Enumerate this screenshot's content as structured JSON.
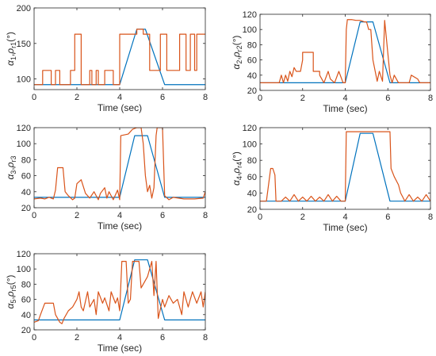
{
  "colors": {
    "reference": "#0072BD",
    "measured": "#D95319",
    "axes": "#262626",
    "background": "#ffffff"
  },
  "chart_data": [
    {
      "type": "line",
      "title": "",
      "xlabel": "Time (sec)",
      "ylabel_sym": "α",
      "ylabel_sym2": "ρ",
      "ylabel_sub1": "1",
      "ylabel_sub2": "r1",
      "ylabel_unit": "(°)",
      "xlim": [
        0,
        8
      ],
      "ylim": [
        85,
        200
      ],
      "xticks": [
        "0",
        "2",
        "4",
        "6",
        "8"
      ],
      "yticks": [
        "100",
        "150",
        "200"
      ],
      "series": [
        {
          "role": "reference",
          "x": [
            0,
            4,
            4.8,
            5.2,
            6.1,
            8
          ],
          "y": [
            92,
            92,
            170,
            170,
            92,
            92
          ]
        },
        {
          "role": "measured",
          "x": [
            0,
            0.4,
            0.4,
            0.8,
            0.8,
            1.0,
            1.0,
            1.2,
            1.2,
            1.7,
            1.7,
            1.9,
            1.9,
            2.2,
            2.2,
            2.6,
            2.6,
            2.7,
            2.7,
            2.9,
            2.9,
            3.0,
            3.0,
            3.3,
            3.3,
            3.7,
            3.7,
            4.0,
            4.0,
            4.8,
            4.8,
            5.1,
            5.1,
            5.4,
            5.4,
            5.9,
            5.9,
            6.2,
            6.2,
            6.8,
            6.8,
            7.1,
            7.1,
            7.3,
            7.3,
            7.5,
            7.5,
            7.6,
            7.6,
            7.8,
            7.8,
            8
          ],
          "y": [
            92,
            92,
            112,
            112,
            92,
            92,
            112,
            112,
            92,
            92,
            112,
            112,
            163,
            163,
            92,
            92,
            112,
            112,
            92,
            92,
            112,
            112,
            92,
            92,
            112,
            112,
            92,
            92,
            163,
            163,
            170,
            170,
            163,
            163,
            112,
            112,
            163,
            163,
            112,
            112,
            163,
            163,
            112,
            112,
            163,
            163,
            112,
            112,
            163,
            163,
            163,
            163
          ]
        }
      ]
    },
    {
      "type": "line",
      "title": "",
      "xlabel": "Time (sec)",
      "ylabel_sym": "α",
      "ylabel_sym2": "ρ",
      "ylabel_sub1": "2",
      "ylabel_sub2": "r2",
      "ylabel_unit": "(°)",
      "xlim": [
        0,
        8
      ],
      "ylim": [
        20,
        120
      ],
      "xticks": [
        "0",
        "2",
        "4",
        "6",
        "8"
      ],
      "yticks": [
        "20",
        "40",
        "60",
        "80",
        "100",
        "120"
      ],
      "series": [
        {
          "role": "reference",
          "x": [
            0,
            4,
            4.7,
            5.3,
            6.1,
            8
          ],
          "y": [
            30,
            30,
            110,
            110,
            30,
            30
          ]
        },
        {
          "role": "measured",
          "x": [
            0,
            0.9,
            1.0,
            1.1,
            1.2,
            1.3,
            1.4,
            1.5,
            1.6,
            1.7,
            1.9,
            2.0,
            2.0,
            2.5,
            2.5,
            2.8,
            2.8,
            3.0,
            3.2,
            3.3,
            3.5,
            3.7,
            3.9,
            4.0,
            4.05,
            4.1,
            4.3,
            4.5,
            4.7,
            4.9,
            5.0,
            5.1,
            5.2,
            5.3,
            5.5,
            5.6,
            5.75,
            5.85,
            5.85,
            6.1,
            6.2,
            6.3,
            6.5,
            6.6,
            7.0,
            7.1,
            7.4,
            7.5,
            7.6,
            8
          ],
          "y": [
            30,
            30,
            40,
            30,
            40,
            32,
            45,
            38,
            50,
            45,
            45,
            60,
            70,
            70,
            45,
            45,
            40,
            30,
            45,
            35,
            30,
            45,
            30,
            30,
            100,
            113,
            113,
            112,
            112,
            110,
            110,
            100,
            100,
            60,
            32,
            45,
            32,
            112,
            112,
            40,
            30,
            40,
            30,
            30,
            30,
            40,
            35,
            30,
            30,
            30
          ]
        }
      ]
    },
    {
      "type": "line",
      "title": "",
      "xlabel": "Time (sec)",
      "ylabel_sym": "α",
      "ylabel_sym2": "ρ",
      "ylabel_sub1": "3",
      "ylabel_sub2": "r3",
      "ylabel_unit": "",
      "xlim": [
        0,
        8
      ],
      "ylim": [
        20,
        120
      ],
      "xticks": [
        "0",
        "2",
        "4",
        "6",
        "8"
      ],
      "yticks": [
        "20",
        "40",
        "60",
        "80",
        "100",
        "120"
      ],
      "series": [
        {
          "role": "reference",
          "x": [
            0,
            4,
            4.7,
            5.3,
            6.1,
            8
          ],
          "y": [
            33,
            33,
            110,
            110,
            33,
            33
          ]
        },
        {
          "role": "measured",
          "x": [
            0,
            0.3,
            0.5,
            0.7,
            0.9,
            1.0,
            1.1,
            1.35,
            1.45,
            1.6,
            1.8,
            1.9,
            2.0,
            2.2,
            2.4,
            2.6,
            2.8,
            3.0,
            3.1,
            3.3,
            3.4,
            3.5,
            3.7,
            3.9,
            4.0,
            4.05,
            4.4,
            4.6,
            4.8,
            5.0,
            5.1,
            5.2,
            5.3,
            5.4,
            5.5,
            5.6,
            5.7,
            5.75,
            6.0,
            6.1,
            6.3,
            6.5,
            7.0,
            7.5,
            7.9,
            8
          ],
          "y": [
            31,
            32,
            31,
            33,
            31,
            42,
            70,
            70,
            40,
            35,
            30,
            32,
            50,
            55,
            38,
            32,
            40,
            30,
            38,
            45,
            32,
            40,
            30,
            42,
            30,
            110,
            112,
            118,
            120,
            120,
            100,
            60,
            40,
            48,
            32,
            45,
            110,
            120,
            120,
            35,
            30,
            33,
            31,
            31,
            32,
            40
          ]
        }
      ]
    },
    {
      "type": "line",
      "title": "",
      "xlabel": "Time (sec)",
      "ylabel_sym": "α",
      "ylabel_sym2": "ρ",
      "ylabel_sub1": "4",
      "ylabel_sub2": "r4",
      "ylabel_unit": "(°)",
      "xlim": [
        0,
        8
      ],
      "ylim": [
        20,
        120
      ],
      "xticks": [
        "0",
        "2",
        "4",
        "6",
        "8"
      ],
      "yticks": [
        "20",
        "40",
        "60",
        "80",
        "100",
        "120"
      ],
      "series": [
        {
          "role": "reference",
          "x": [
            0,
            4,
            4.7,
            5.3,
            6.1,
            8
          ],
          "y": [
            30,
            30,
            113,
            113,
            30,
            30
          ]
        },
        {
          "role": "measured",
          "x": [
            0,
            0.3,
            0.35,
            0.5,
            0.6,
            0.7,
            0.75,
            1.0,
            1.2,
            1.4,
            1.6,
            1.8,
            2.0,
            2.2,
            2.4,
            2.6,
            2.8,
            3.0,
            3.2,
            3.4,
            3.6,
            3.8,
            4.0,
            4.05,
            6.1,
            6.15,
            6.3,
            6.5,
            6.6,
            6.8,
            7.0,
            7.2,
            7.4,
            7.6,
            7.8,
            8
          ],
          "y": [
            30,
            30,
            40,
            70,
            70,
            62,
            30,
            30,
            35,
            30,
            38,
            30,
            35,
            30,
            36,
            30,
            35,
            30,
            38,
            30,
            36,
            30,
            30,
            115,
            115,
            70,
            60,
            50,
            40,
            30,
            38,
            30,
            35,
            30,
            38,
            30
          ]
        }
      ]
    },
    {
      "type": "line",
      "title": "",
      "xlabel": "Time (sec)",
      "ylabel_sym": "α",
      "ylabel_sym2": "ρ",
      "ylabel_sub1": "5",
      "ylabel_sub2": "r5",
      "ylabel_unit": "(°)",
      "xlim": [
        0,
        8
      ],
      "ylim": [
        20,
        120
      ],
      "xticks": [
        "0",
        "2",
        "4",
        "6",
        "8"
      ],
      "yticks": [
        "20",
        "40",
        "60",
        "80",
        "100",
        "120"
      ],
      "series": [
        {
          "role": "reference",
          "x": [
            0,
            4,
            4.7,
            5.3,
            6.1,
            8
          ],
          "y": [
            33,
            33,
            112,
            112,
            33,
            33
          ]
        },
        {
          "role": "measured",
          "x": [
            0,
            0.2,
            0.3,
            0.5,
            0.9,
            1.0,
            1.2,
            1.3,
            1.4,
            1.6,
            1.8,
            2.0,
            2.1,
            2.2,
            2.3,
            2.5,
            2.6,
            2.8,
            2.9,
            3.0,
            3.2,
            3.3,
            3.5,
            3.6,
            3.8,
            3.9,
            4.0,
            4.1,
            4.3,
            4.4,
            4.5,
            4.6,
            4.9,
            5.0,
            5.1,
            5.3,
            5.5,
            5.6,
            5.7,
            5.8,
            6.0,
            6.1,
            6.3,
            6.5,
            6.7,
            6.9,
            7.0,
            7.2,
            7.4,
            7.6,
            7.8,
            7.9,
            8
          ],
          "y": [
            30,
            32,
            40,
            55,
            55,
            40,
            30,
            28,
            35,
            45,
            50,
            60,
            70,
            50,
            45,
            70,
            50,
            60,
            40,
            70,
            55,
            62,
            45,
            70,
            55,
            62,
            45,
            110,
            110,
            55,
            60,
            110,
            110,
            75,
            80,
            90,
            110,
            65,
            110,
            35,
            60,
            50,
            65,
            55,
            60,
            40,
            70,
            50,
            70,
            55,
            70,
            50,
            70
          ]
        }
      ]
    }
  ]
}
